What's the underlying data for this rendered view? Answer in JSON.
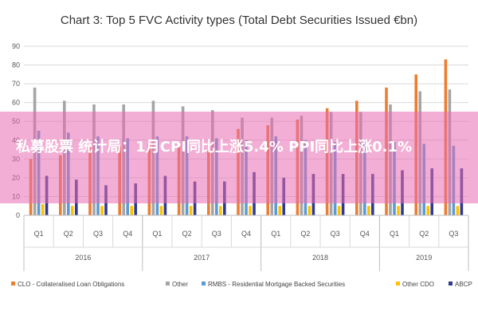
{
  "chart_data": {
    "type": "bar",
    "title": "Chart 3: Top 5 FVC Activity types (Total Debt Securities Issued €bn)",
    "ylim": [
      0,
      90
    ],
    "yticks": [
      0,
      10,
      20,
      30,
      40,
      50,
      60,
      70,
      80,
      90
    ],
    "grid": true,
    "legend_position": "bottom",
    "categories": [
      "Q1",
      "Q2",
      "Q3",
      "Q4",
      "Q1",
      "Q2",
      "Q3",
      "Q4",
      "Q1",
      "Q2",
      "Q3",
      "Q4",
      "Q1",
      "Q2",
      "Q3"
    ],
    "years": [
      {
        "label": "2016",
        "count": 4
      },
      {
        "label": "2017",
        "count": 4
      },
      {
        "label": "2018",
        "count": 4
      },
      {
        "label": "2019",
        "count": 3
      }
    ],
    "series": [
      {
        "name": "CLO - Collateralised Loan Obligations",
        "color": "#ed7d31",
        "values": [
          30,
          32,
          36,
          37,
          38,
          39,
          35,
          46,
          48,
          51,
          57,
          61,
          68,
          75,
          83
        ]
      },
      {
        "name": "Other",
        "color": "#a5a5a5",
        "values": [
          68,
          61,
          59,
          59,
          61,
          58,
          56,
          52,
          52,
          53,
          55,
          55,
          59,
          66,
          67
        ]
      },
      {
        "name": "RMBS - Residential Mortgage Backed Securities",
        "color": "#5b9bd5",
        "values": [
          45,
          44,
          42,
          41,
          42,
          42,
          41,
          40,
          42,
          40,
          39,
          39,
          39,
          38,
          37
        ]
      },
      {
        "name": "Other CDO",
        "color": "#ffc000",
        "values": [
          6,
          5,
          5,
          5,
          5,
          5,
          5,
          5,
          5,
          5,
          5,
          5,
          5,
          5,
          5
        ]
      },
      {
        "name": "ABCP",
        "color": "#2f3a8f",
        "values": [
          21,
          19,
          16,
          17,
          21,
          18,
          18,
          23,
          20,
          22,
          22,
          22,
          24,
          25,
          25
        ]
      }
    ]
  },
  "overlay": {
    "text": "私募股票 统计局：1月CPI同比上涨5.4% PPI同比上涨0.1%",
    "color": "#e86cb0"
  }
}
